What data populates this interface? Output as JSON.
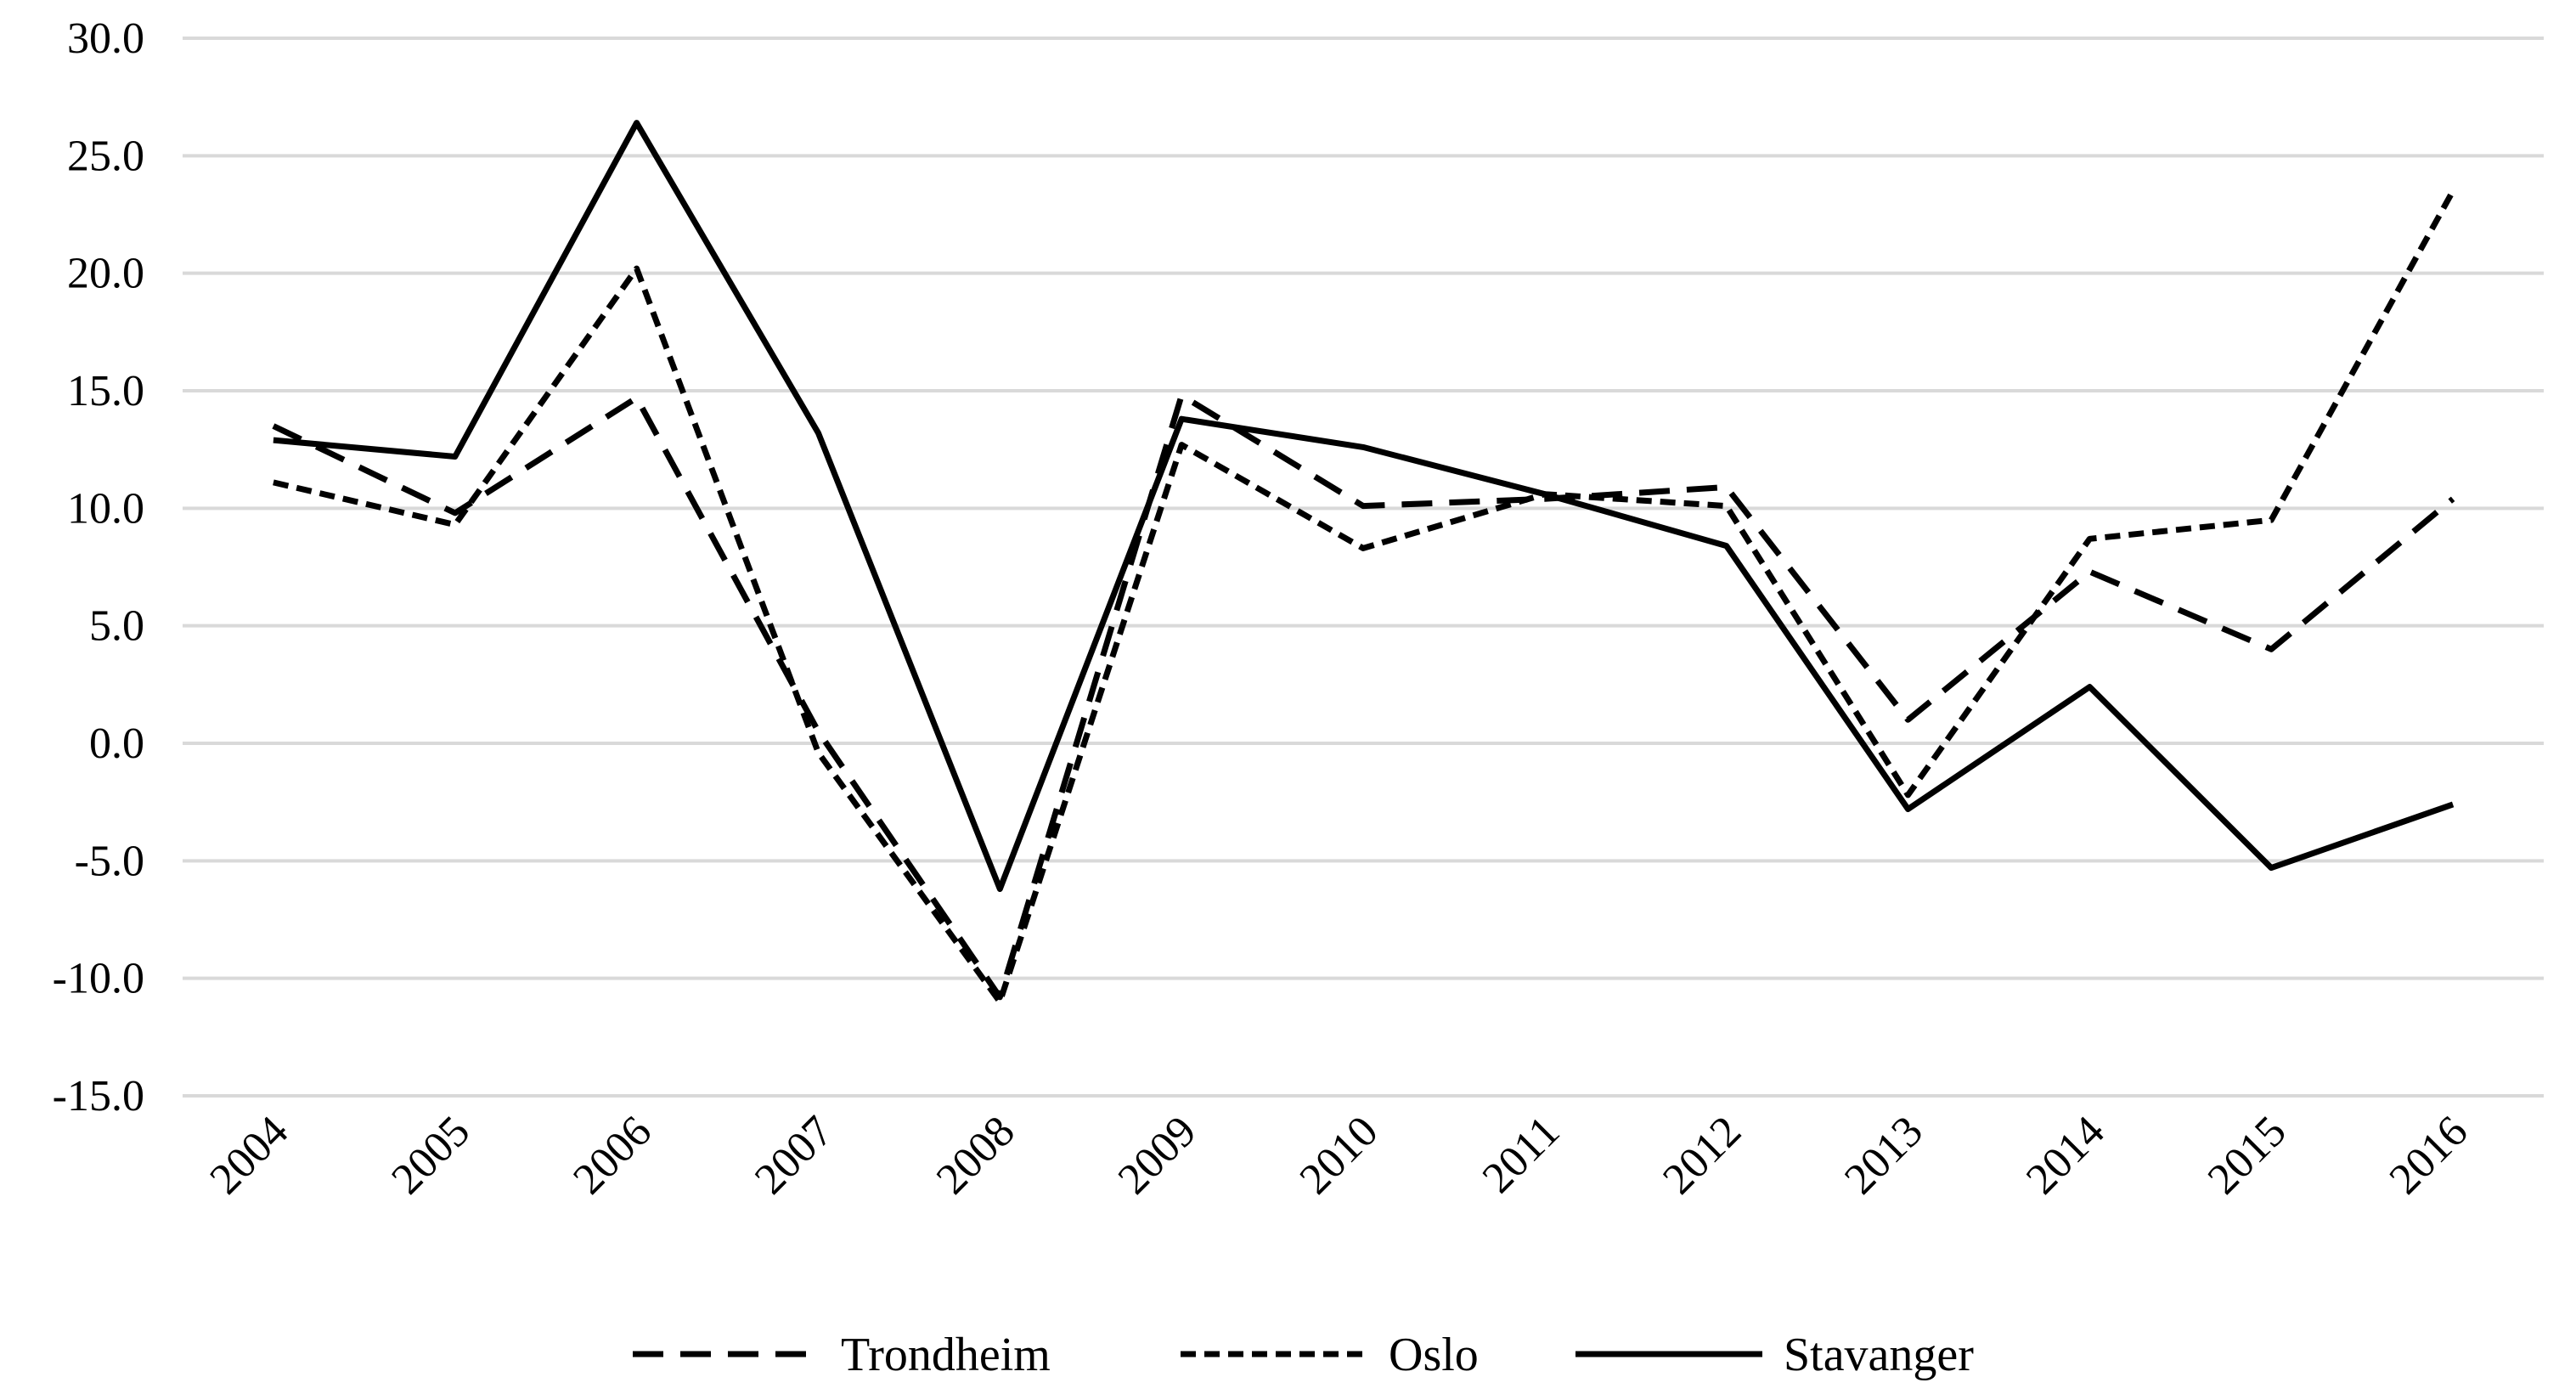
{
  "chart_data": {
    "type": "line",
    "title": "",
    "xlabel": "",
    "ylabel": "",
    "categories": [
      "2004",
      "2005",
      "2006",
      "2007",
      "2008",
      "2009",
      "2010",
      "2011",
      "2012",
      "2013",
      "2014",
      "2015",
      "2016"
    ],
    "ylim": [
      -15,
      30
    ],
    "ytick_step": 5,
    "ytick_labels": [
      "-15.0",
      "-10.0",
      "-5.0",
      "0.0",
      "5.0",
      "10.0",
      "15.0",
      "20.0",
      "25.0",
      "30.0"
    ],
    "grid": true,
    "legend_position": "bottom",
    "series": [
      {
        "name": "Trondheim",
        "style": "long-dash",
        "color": "#000000",
        "values": [
          13.5,
          9.8,
          14.7,
          0.5,
          -10.8,
          14.8,
          10.1,
          10.4,
          10.9,
          1.0,
          7.3,
          4.0,
          10.4
        ]
      },
      {
        "name": "Oslo",
        "style": "short-dash",
        "color": "#000000",
        "values": [
          11.1,
          9.3,
          20.2,
          -0.4,
          -11.0,
          12.7,
          8.3,
          10.6,
          10.1,
          -2.2,
          8.7,
          9.5,
          23.5
        ]
      },
      {
        "name": "Stavanger",
        "style": "solid",
        "color": "#000000",
        "values": [
          12.9,
          12.2,
          26.4,
          13.2,
          -6.2,
          13.8,
          12.6,
          10.6,
          8.4,
          -2.8,
          2.4,
          -5.3,
          -2.6
        ]
      }
    ]
  }
}
